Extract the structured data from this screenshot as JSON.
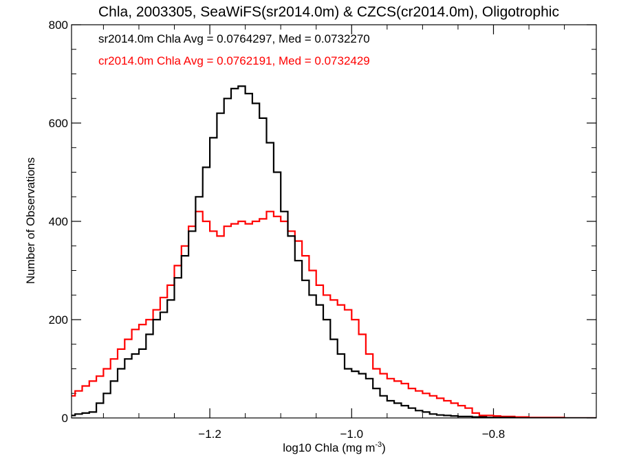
{
  "chart_data": {
    "type": "line",
    "title": "Chla, 2003305, SeaWiFS(sr2014.0m) & CZCS(cr2014.0m), Oligotrophic",
    "xlabel_main": "log10 Chla (mg m",
    "xlabel_sup": "-3",
    "xlabel_close": ")",
    "ylabel": "Number of Observations",
    "xlim": [
      -1.395,
      -0.655
    ],
    "ylim": [
      0,
      800
    ],
    "xticks": [
      -1.2,
      -1.0,
      -0.8
    ],
    "xtick_labels": [
      "−1.2",
      "−1.0",
      "−0.8"
    ],
    "yticks": [
      0,
      200,
      400,
      600,
      800
    ],
    "ytick_labels": [
      "0",
      "200",
      "400",
      "600",
      "800"
    ],
    "x_minor_step": 0.05,
    "y_minor_step": 50,
    "legend_position": "top-left",
    "series": [
      {
        "name": "sr2014.0m",
        "color": "#000000",
        "legend_text": "sr2014.0m Chla Avg = 0.0764297, Med = 0.0732270",
        "x": [
          -1.395,
          -1.385,
          -1.375,
          -1.365,
          -1.355,
          -1.345,
          -1.335,
          -1.325,
          -1.315,
          -1.305,
          -1.295,
          -1.285,
          -1.275,
          -1.265,
          -1.255,
          -1.245,
          -1.235,
          -1.225,
          -1.215,
          -1.205,
          -1.195,
          -1.185,
          -1.175,
          -1.165,
          -1.155,
          -1.145,
          -1.135,
          -1.125,
          -1.115,
          -1.105,
          -1.095,
          -1.085,
          -1.075,
          -1.065,
          -1.055,
          -1.045,
          -1.035,
          -1.025,
          -1.015,
          -1.005,
          -0.995,
          -0.985,
          -0.975,
          -0.965,
          -0.955,
          -0.945,
          -0.935,
          -0.925,
          -0.915,
          -0.905,
          -0.895,
          -0.885,
          -0.875,
          -0.865,
          -0.855,
          -0.845,
          -0.835,
          -0.825,
          -0.815,
          -0.805,
          -0.795,
          -0.785,
          -0.775,
          -0.765,
          -0.755,
          -0.745,
          -0.735,
          -0.725,
          -0.715,
          -0.705,
          -0.695,
          -0.685,
          -0.675,
          -0.665,
          -0.655
        ],
        "y": [
          5,
          8,
          10,
          12,
          30,
          50,
          75,
          100,
          120,
          130,
          140,
          170,
          200,
          215,
          240,
          285,
          330,
          380,
          450,
          510,
          570,
          620,
          650,
          670,
          675,
          660,
          640,
          610,
          560,
          500,
          420,
          370,
          320,
          280,
          250,
          230,
          200,
          160,
          130,
          100,
          95,
          90,
          80,
          60,
          45,
          35,
          30,
          25,
          20,
          15,
          12,
          8,
          6,
          5,
          4,
          3,
          3,
          2,
          2,
          1,
          1,
          1,
          1,
          0,
          0,
          0,
          0,
          0,
          0,
          0,
          0,
          0,
          0,
          0,
          0
        ]
      },
      {
        "name": "cr2014.0m",
        "color": "#ff0000",
        "legend_text": "cr2014.0m Chla Avg = 0.0762191, Med = 0.0732429",
        "x": [
          -1.395,
          -1.385,
          -1.375,
          -1.365,
          -1.355,
          -1.345,
          -1.335,
          -1.325,
          -1.315,
          -1.305,
          -1.295,
          -1.285,
          -1.275,
          -1.265,
          -1.255,
          -1.245,
          -1.235,
          -1.225,
          -1.215,
          -1.205,
          -1.195,
          -1.185,
          -1.175,
          -1.165,
          -1.155,
          -1.145,
          -1.135,
          -1.125,
          -1.115,
          -1.105,
          -1.095,
          -1.085,
          -1.075,
          -1.065,
          -1.055,
          -1.045,
          -1.035,
          -1.025,
          -1.015,
          -1.005,
          -0.995,
          -0.985,
          -0.975,
          -0.965,
          -0.955,
          -0.945,
          -0.935,
          -0.925,
          -0.915,
          -0.905,
          -0.895,
          -0.885,
          -0.875,
          -0.865,
          -0.855,
          -0.845,
          -0.835,
          -0.825,
          -0.815,
          -0.805,
          -0.795,
          -0.785,
          -0.775,
          -0.765,
          -0.755,
          -0.745,
          -0.735,
          -0.725,
          -0.715,
          -0.705,
          -0.695,
          -0.685,
          -0.675,
          -0.665,
          -0.655
        ],
        "y": [
          45,
          55,
          65,
          75,
          85,
          100,
          120,
          140,
          160,
          180,
          190,
          200,
          220,
          245,
          270,
          310,
          350,
          390,
          420,
          400,
          380,
          370,
          390,
          395,
          400,
          395,
          400,
          405,
          420,
          410,
          400,
          380,
          360,
          330,
          300,
          270,
          250,
          240,
          230,
          220,
          200,
          170,
          130,
          100,
          90,
          80,
          75,
          70,
          60,
          55,
          50,
          45,
          40,
          35,
          30,
          25,
          20,
          10,
          5,
          5,
          4,
          3,
          3,
          2,
          2,
          1,
          1,
          1,
          1,
          1,
          0,
          0,
          0,
          0,
          0
        ]
      }
    ]
  }
}
